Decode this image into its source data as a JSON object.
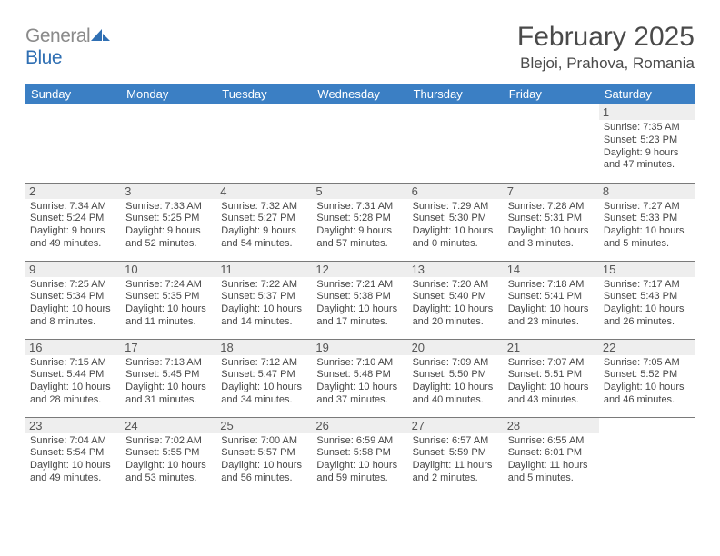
{
  "brand": {
    "part1": "General",
    "part2": "Blue"
  },
  "title": "February 2025",
  "location": "Blejoi, Prahova, Romania",
  "colors": {
    "header_bg": "#3b7fc4",
    "header_text": "#ffffff",
    "daynum_bg": "#eeeeee",
    "border": "#7a7a7a",
    "text": "#464646",
    "logo_gray": "#8a8a8a",
    "logo_blue": "#2f6fb3"
  },
  "day_headers": [
    "Sunday",
    "Monday",
    "Tuesday",
    "Wednesday",
    "Thursday",
    "Friday",
    "Saturday"
  ],
  "weeks": [
    [
      {
        "n": "",
        "lines": []
      },
      {
        "n": "",
        "lines": []
      },
      {
        "n": "",
        "lines": []
      },
      {
        "n": "",
        "lines": []
      },
      {
        "n": "",
        "lines": []
      },
      {
        "n": "",
        "lines": []
      },
      {
        "n": "1",
        "lines": [
          "Sunrise: 7:35 AM",
          "Sunset: 5:23 PM",
          "Daylight: 9 hours and 47 minutes."
        ]
      }
    ],
    [
      {
        "n": "2",
        "lines": [
          "Sunrise: 7:34 AM",
          "Sunset: 5:24 PM",
          "Daylight: 9 hours and 49 minutes."
        ]
      },
      {
        "n": "3",
        "lines": [
          "Sunrise: 7:33 AM",
          "Sunset: 5:25 PM",
          "Daylight: 9 hours and 52 minutes."
        ]
      },
      {
        "n": "4",
        "lines": [
          "Sunrise: 7:32 AM",
          "Sunset: 5:27 PM",
          "Daylight: 9 hours and 54 minutes."
        ]
      },
      {
        "n": "5",
        "lines": [
          "Sunrise: 7:31 AM",
          "Sunset: 5:28 PM",
          "Daylight: 9 hours and 57 minutes."
        ]
      },
      {
        "n": "6",
        "lines": [
          "Sunrise: 7:29 AM",
          "Sunset: 5:30 PM",
          "Daylight: 10 hours and 0 minutes."
        ]
      },
      {
        "n": "7",
        "lines": [
          "Sunrise: 7:28 AM",
          "Sunset: 5:31 PM",
          "Daylight: 10 hours and 3 minutes."
        ]
      },
      {
        "n": "8",
        "lines": [
          "Sunrise: 7:27 AM",
          "Sunset: 5:33 PM",
          "Daylight: 10 hours and 5 minutes."
        ]
      }
    ],
    [
      {
        "n": "9",
        "lines": [
          "Sunrise: 7:25 AM",
          "Sunset: 5:34 PM",
          "Daylight: 10 hours and 8 minutes."
        ]
      },
      {
        "n": "10",
        "lines": [
          "Sunrise: 7:24 AM",
          "Sunset: 5:35 PM",
          "Daylight: 10 hours and 11 minutes."
        ]
      },
      {
        "n": "11",
        "lines": [
          "Sunrise: 7:22 AM",
          "Sunset: 5:37 PM",
          "Daylight: 10 hours and 14 minutes."
        ]
      },
      {
        "n": "12",
        "lines": [
          "Sunrise: 7:21 AM",
          "Sunset: 5:38 PM",
          "Daylight: 10 hours and 17 minutes."
        ]
      },
      {
        "n": "13",
        "lines": [
          "Sunrise: 7:20 AM",
          "Sunset: 5:40 PM",
          "Daylight: 10 hours and 20 minutes."
        ]
      },
      {
        "n": "14",
        "lines": [
          "Sunrise: 7:18 AM",
          "Sunset: 5:41 PM",
          "Daylight: 10 hours and 23 minutes."
        ]
      },
      {
        "n": "15",
        "lines": [
          "Sunrise: 7:17 AM",
          "Sunset: 5:43 PM",
          "Daylight: 10 hours and 26 minutes."
        ]
      }
    ],
    [
      {
        "n": "16",
        "lines": [
          "Sunrise: 7:15 AM",
          "Sunset: 5:44 PM",
          "Daylight: 10 hours and 28 minutes."
        ]
      },
      {
        "n": "17",
        "lines": [
          "Sunrise: 7:13 AM",
          "Sunset: 5:45 PM",
          "Daylight: 10 hours and 31 minutes."
        ]
      },
      {
        "n": "18",
        "lines": [
          "Sunrise: 7:12 AM",
          "Sunset: 5:47 PM",
          "Daylight: 10 hours and 34 minutes."
        ]
      },
      {
        "n": "19",
        "lines": [
          "Sunrise: 7:10 AM",
          "Sunset: 5:48 PM",
          "Daylight: 10 hours and 37 minutes."
        ]
      },
      {
        "n": "20",
        "lines": [
          "Sunrise: 7:09 AM",
          "Sunset: 5:50 PM",
          "Daylight: 10 hours and 40 minutes."
        ]
      },
      {
        "n": "21",
        "lines": [
          "Sunrise: 7:07 AM",
          "Sunset: 5:51 PM",
          "Daylight: 10 hours and 43 minutes."
        ]
      },
      {
        "n": "22",
        "lines": [
          "Sunrise: 7:05 AM",
          "Sunset: 5:52 PM",
          "Daylight: 10 hours and 46 minutes."
        ]
      }
    ],
    [
      {
        "n": "23",
        "lines": [
          "Sunrise: 7:04 AM",
          "Sunset: 5:54 PM",
          "Daylight: 10 hours and 49 minutes."
        ]
      },
      {
        "n": "24",
        "lines": [
          "Sunrise: 7:02 AM",
          "Sunset: 5:55 PM",
          "Daylight: 10 hours and 53 minutes."
        ]
      },
      {
        "n": "25",
        "lines": [
          "Sunrise: 7:00 AM",
          "Sunset: 5:57 PM",
          "Daylight: 10 hours and 56 minutes."
        ]
      },
      {
        "n": "26",
        "lines": [
          "Sunrise: 6:59 AM",
          "Sunset: 5:58 PM",
          "Daylight: 10 hours and 59 minutes."
        ]
      },
      {
        "n": "27",
        "lines": [
          "Sunrise: 6:57 AM",
          "Sunset: 5:59 PM",
          "Daylight: 11 hours and 2 minutes."
        ]
      },
      {
        "n": "28",
        "lines": [
          "Sunrise: 6:55 AM",
          "Sunset: 6:01 PM",
          "Daylight: 11 hours and 5 minutes."
        ]
      },
      {
        "n": "",
        "lines": []
      }
    ]
  ]
}
